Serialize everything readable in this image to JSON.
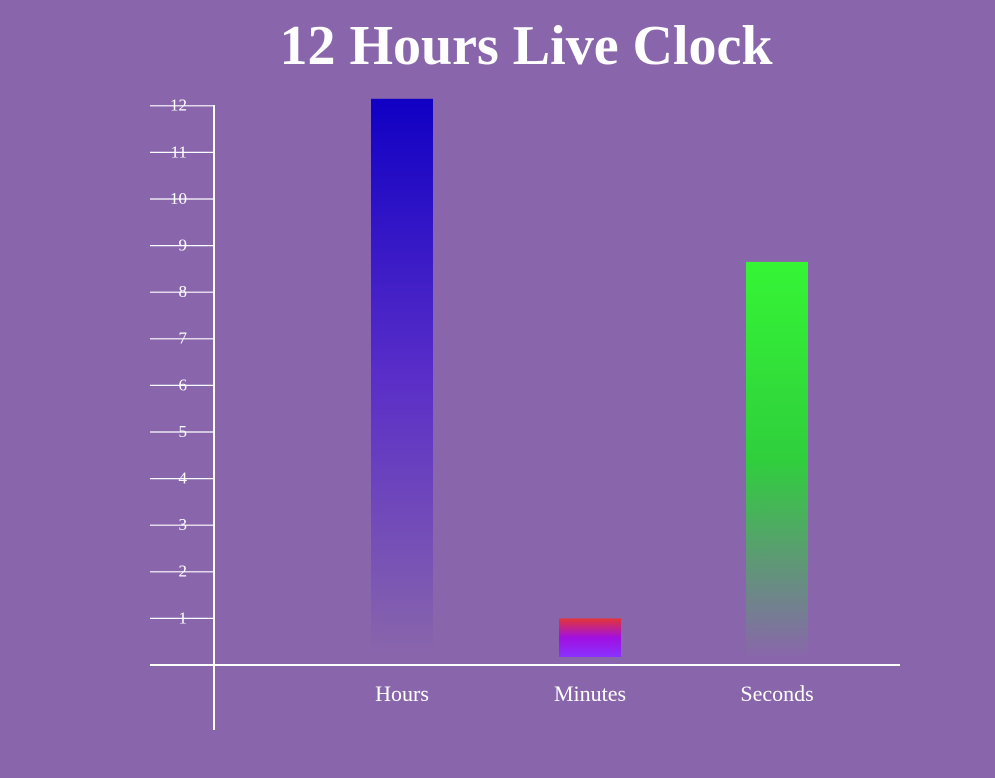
{
  "page": {
    "title": "12 Hours Live Clock",
    "background_color": "#8966ab"
  },
  "chart_data": {
    "type": "bar",
    "title": "12 Hours Live Clock",
    "xlabel": "",
    "ylabel": "",
    "categories": [
      "Hours",
      "Minutes",
      "Seconds"
    ],
    "values": [
      12.15,
      1.0,
      8.65
    ],
    "ylim": [
      0,
      12
    ],
    "yticks": [
      1,
      2,
      3,
      4,
      5,
      6,
      7,
      8,
      9,
      10,
      11,
      12
    ],
    "grid": false,
    "legend": "none",
    "bar_gradients": [
      {
        "top": "#1000c4",
        "mid": "#5a2ec8",
        "bottom": "#8966ab"
      },
      {
        "top": "#e33535",
        "mid": "#a010e0",
        "bottom": "#8a30ff"
      },
      {
        "top": "#35f535",
        "mid": "#2fcf3c",
        "bottom": "#8966ab"
      }
    ],
    "axis_color": "#ffffff"
  }
}
